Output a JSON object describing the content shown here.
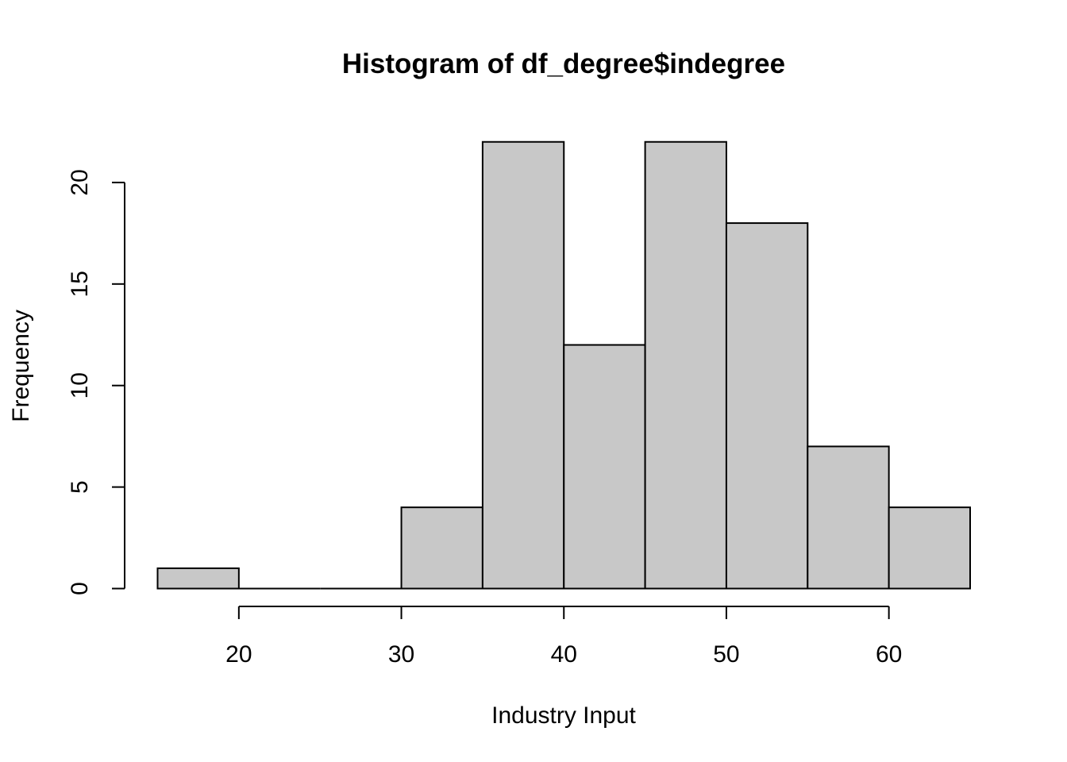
{
  "chart_data": {
    "type": "bar",
    "title": "Histogram of df_degree$indegree",
    "xlabel": "Industry Input",
    "ylabel": "Frequency",
    "bins": [
      {
        "from": 15,
        "to": 20,
        "count": 1
      },
      {
        "from": 20,
        "to": 25,
        "count": 0
      },
      {
        "from": 25,
        "to": 30,
        "count": 0
      },
      {
        "from": 30,
        "to": 35,
        "count": 4
      },
      {
        "from": 35,
        "to": 40,
        "count": 22
      },
      {
        "from": 40,
        "to": 45,
        "count": 12
      },
      {
        "from": 45,
        "to": 50,
        "count": 22
      },
      {
        "from": 50,
        "to": 55,
        "count": 18
      },
      {
        "from": 55,
        "to": 60,
        "count": 7
      },
      {
        "from": 60,
        "to": 65,
        "count": 4
      }
    ],
    "xticks": [
      "20",
      "30",
      "40",
      "50",
      "60"
    ],
    "yticks": [
      "0",
      "5",
      "10",
      "15",
      "20"
    ],
    "xlim": [
      15,
      65
    ],
    "ylim": [
      0,
      22
    ],
    "grid": false,
    "colors": {
      "bar_fill": "#c8c8c8",
      "bar_stroke": "#000000",
      "axis": "#000000"
    }
  }
}
